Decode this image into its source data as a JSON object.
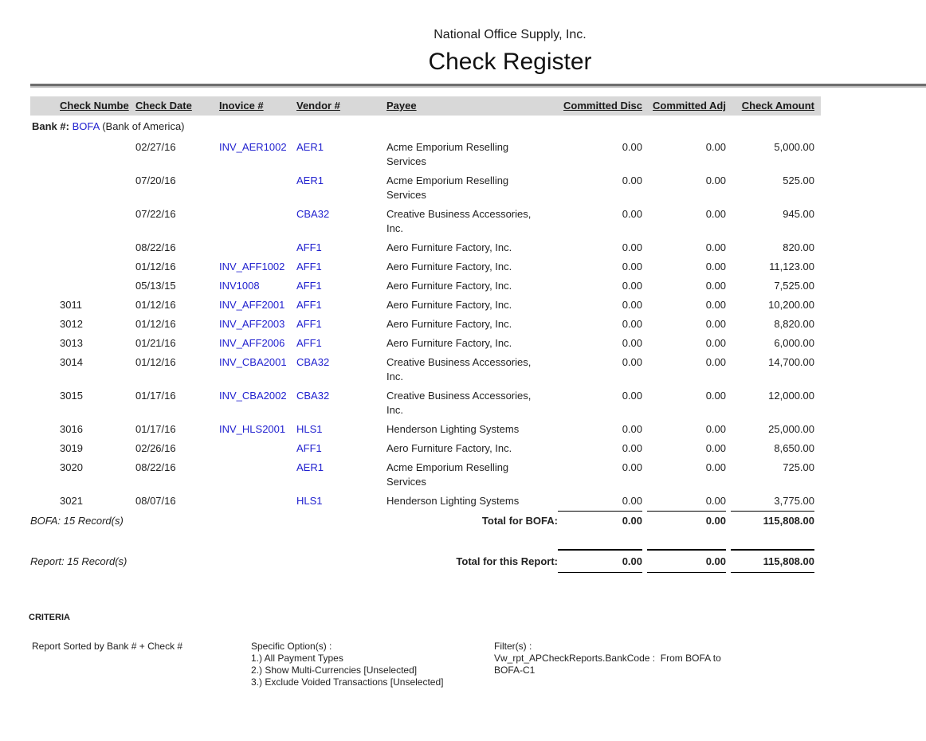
{
  "report": {
    "company": "National Office Supply, Inc.",
    "title": "Check Register"
  },
  "table": {
    "columns": [
      {
        "key": "check_number",
        "label": "Check Numbe",
        "align": "left"
      },
      {
        "key": "check_date",
        "label": "Check Date",
        "align": "left"
      },
      {
        "key": "invoice",
        "label": "Inovice #",
        "align": "left"
      },
      {
        "key": "vendor",
        "label": "Vendor #",
        "align": "left"
      },
      {
        "key": "payee",
        "label": "Payee",
        "align": "left"
      },
      {
        "key": "committed_disc",
        "label": "Committed Disc",
        "align": "right"
      },
      {
        "key": "committed_adj",
        "label": "Committed Adj",
        "align": "right"
      },
      {
        "key": "check_amount",
        "label": "Check Amount",
        "align": "right"
      }
    ],
    "group": {
      "label_prefix": "Bank #:",
      "bank_code": "BOFA",
      "bank_name_suffix": "(Bank of America)"
    },
    "rows": [
      {
        "check_number": "",
        "check_date": "02/27/16",
        "invoice": "INV_AER1002",
        "vendor": "AER1",
        "payee_lines": [
          "Acme Emporium Reselling",
          "Services"
        ],
        "committed_disc": "0.00",
        "committed_adj": "0.00",
        "check_amount": "5,000.00"
      },
      {
        "check_number": "",
        "check_date": "07/20/16",
        "invoice": "",
        "vendor": "AER1",
        "payee_lines": [
          "Acme Emporium Reselling",
          "Services"
        ],
        "committed_disc": "0.00",
        "committed_adj": "0.00",
        "check_amount": "525.00"
      },
      {
        "check_number": "",
        "check_date": "07/22/16",
        "invoice": "",
        "vendor": "CBA32",
        "payee_lines": [
          "Creative Business Accessories,",
          "Inc."
        ],
        "committed_disc": "0.00",
        "committed_adj": "0.00",
        "check_amount": "945.00"
      },
      {
        "check_number": "",
        "check_date": "08/22/16",
        "invoice": "",
        "vendor": "AFF1",
        "payee_lines": [
          "Aero Furniture Factory, Inc."
        ],
        "committed_disc": "0.00",
        "committed_adj": "0.00",
        "check_amount": "820.00"
      },
      {
        "check_number": "",
        "check_date": "01/12/16",
        "invoice": "INV_AFF1002",
        "vendor": "AFF1",
        "payee_lines": [
          "Aero Furniture Factory, Inc."
        ],
        "committed_disc": "0.00",
        "committed_adj": "0.00",
        "check_amount": "11,123.00"
      },
      {
        "check_number": "",
        "check_date": "05/13/15",
        "invoice": "INV1008",
        "vendor": "AFF1",
        "payee_lines": [
          "Aero Furniture Factory, Inc."
        ],
        "committed_disc": "0.00",
        "committed_adj": "0.00",
        "check_amount": "7,525.00"
      },
      {
        "check_number": "3011",
        "check_date": "01/12/16",
        "invoice": "INV_AFF2001",
        "vendor": "AFF1",
        "payee_lines": [
          "Aero Furniture Factory, Inc."
        ],
        "committed_disc": "0.00",
        "committed_adj": "0.00",
        "check_amount": "10,200.00"
      },
      {
        "check_number": "3012",
        "check_date": "01/12/16",
        "invoice": "INV_AFF2003",
        "vendor": "AFF1",
        "payee_lines": [
          "Aero Furniture Factory, Inc."
        ],
        "committed_disc": "0.00",
        "committed_adj": "0.00",
        "check_amount": "8,820.00"
      },
      {
        "check_number": "3013",
        "check_date": "01/21/16",
        "invoice": "INV_AFF2006",
        "vendor": "AFF1",
        "payee_lines": [
          "Aero Furniture Factory, Inc."
        ],
        "committed_disc": "0.00",
        "committed_adj": "0.00",
        "check_amount": "6,000.00"
      },
      {
        "check_number": "3014",
        "check_date": "01/12/16",
        "invoice": "INV_CBA2001",
        "vendor": "CBA32",
        "payee_lines": [
          "Creative Business Accessories,",
          "Inc."
        ],
        "committed_disc": "0.00",
        "committed_adj": "0.00",
        "check_amount": "14,700.00"
      },
      {
        "check_number": "3015",
        "check_date": "01/17/16",
        "invoice": "INV_CBA2002",
        "vendor": "CBA32",
        "payee_lines": [
          "Creative Business Accessories,",
          "Inc."
        ],
        "committed_disc": "0.00",
        "committed_adj": "0.00",
        "check_amount": "12,000.00"
      },
      {
        "check_number": "3016",
        "check_date": "01/17/16",
        "invoice": "INV_HLS2001",
        "vendor": "HLS1",
        "payee_lines": [
          "Henderson Lighting Systems"
        ],
        "committed_disc": "0.00",
        "committed_adj": "0.00",
        "check_amount": "25,000.00"
      },
      {
        "check_number": "3019",
        "check_date": "02/26/16",
        "invoice": "",
        "vendor": "AFF1",
        "payee_lines": [
          "Aero Furniture Factory, Inc."
        ],
        "committed_disc": "0.00",
        "committed_adj": "0.00",
        "check_amount": "8,650.00"
      },
      {
        "check_number": "3020",
        "check_date": "08/22/16",
        "invoice": "",
        "vendor": "AER1",
        "payee_lines": [
          "Acme Emporium Reselling",
          "Services"
        ],
        "committed_disc": "0.00",
        "committed_adj": "0.00",
        "check_amount": "725.00"
      },
      {
        "check_number": "3021",
        "check_date": "08/07/16",
        "invoice": "",
        "vendor": "HLS1",
        "payee_lines": [
          "Henderson Lighting Systems"
        ],
        "committed_disc": "0.00",
        "committed_adj": "0.00",
        "check_amount": "3,775.00"
      }
    ],
    "group_total": {
      "record_count": "BOFA: 15 Record(s)",
      "label": "Total for BOFA:",
      "committed_disc": "0.00",
      "committed_adj": "0.00",
      "check_amount": "115,808.00"
    },
    "report_total": {
      "record_count": "Report: 15 Record(s)",
      "label": "Total for this Report:",
      "committed_disc": "0.00",
      "committed_adj": "0.00",
      "check_amount": "115,808.00"
    }
  },
  "criteria": {
    "heading": "CRITERIA",
    "sort_description": "Report Sorted by Bank # + Check #",
    "specific_options": [
      "Specific Option(s) :",
      "1.) All Payment Types",
      "2.) Show Multi-Currencies [Unselected]",
      "3.) Exclude Voided Transactions [Unselected]"
    ],
    "filters": [
      "Filter(s) :",
      "Vw_rpt_APCheckReports.BankCode :  From BOFA to",
      "BOFA-C1"
    ]
  },
  "colors": {
    "link": "#2121cf",
    "header_band": "#d8d8d8",
    "rule_dark": "#6e6e6e",
    "rule_light": "#b9b9b9"
  }
}
